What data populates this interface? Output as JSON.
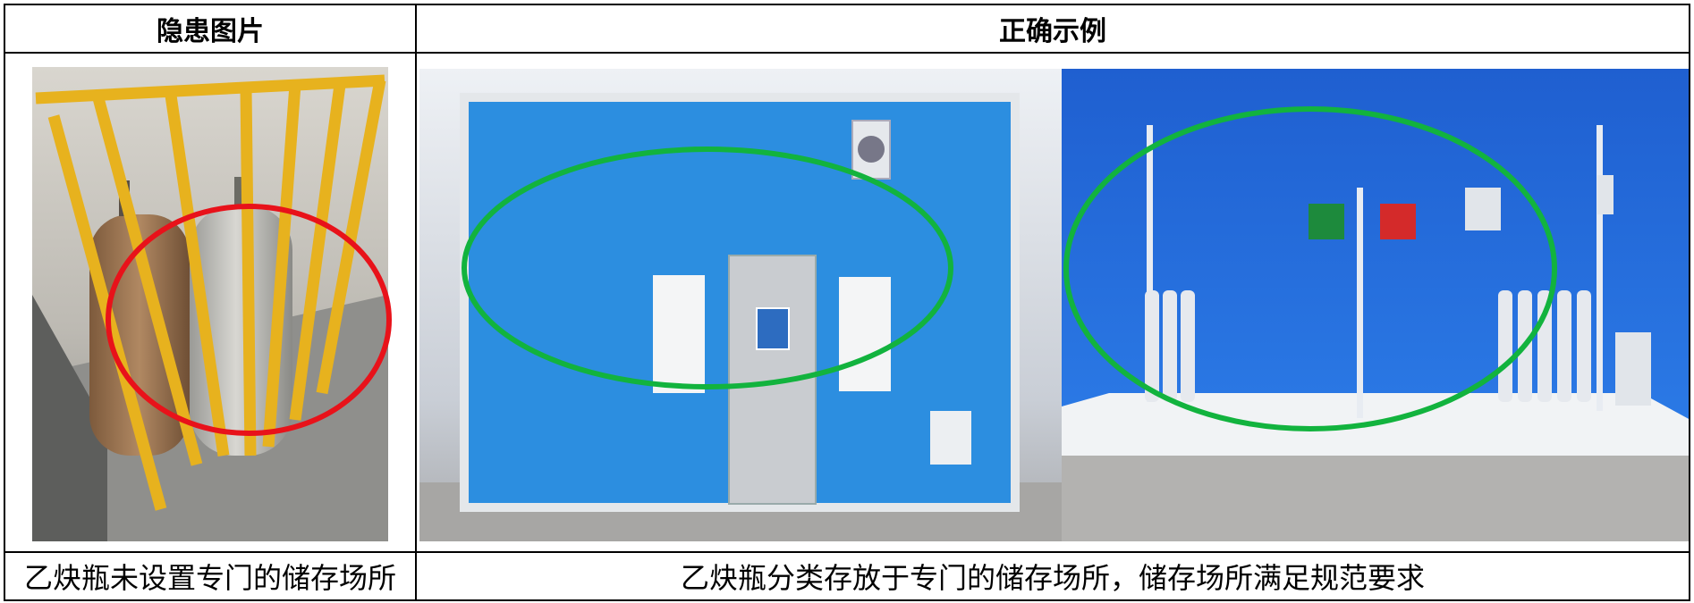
{
  "table": {
    "header": [
      "隐患图片",
      "正确示例"
    ],
    "rows": [
      [
        "乙炔瓶未设置专门的储存场所",
        "乙炔瓶分类存放于专门的储存场所，储存场所满足规范要求"
      ]
    ]
  }
}
